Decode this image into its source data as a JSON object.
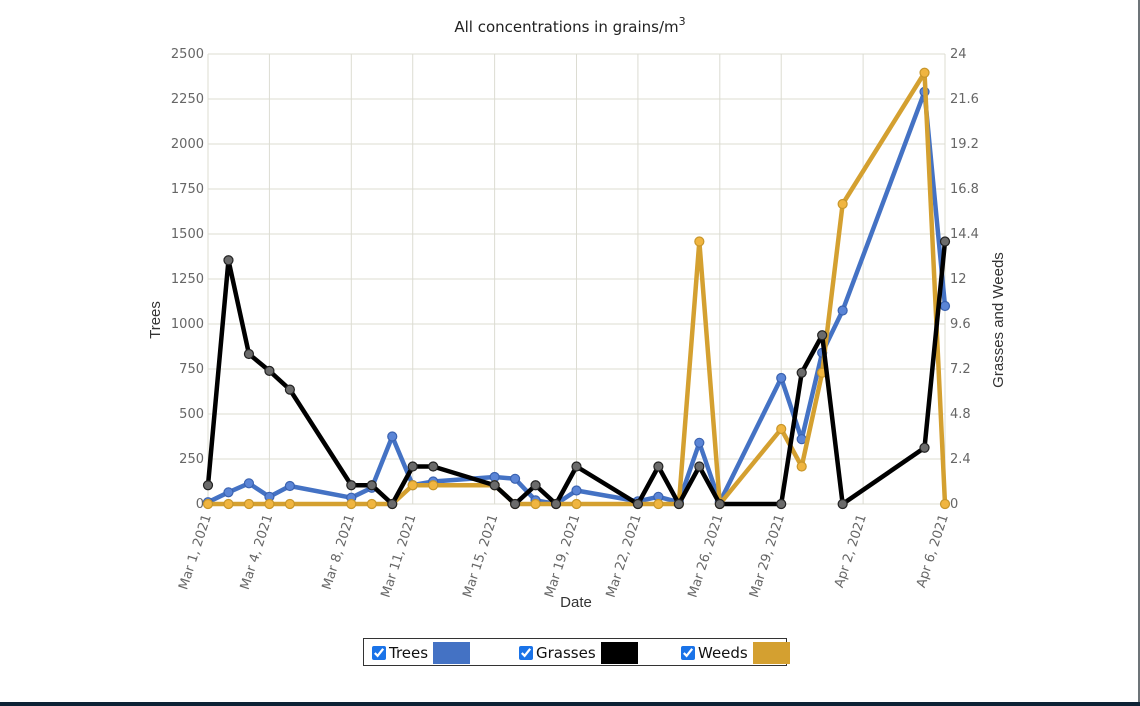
{
  "chart_title": "All concentrations in grains/m",
  "chart_title_sup": "3",
  "x_axis": {
    "title": "Date",
    "ticks": [
      "Mar 1, 2021",
      "Mar 4, 2021",
      "Mar 8, 2021",
      "Mar 11, 2021",
      "Mar 15, 2021",
      "Mar 19, 2021",
      "Mar 22, 2021",
      "Mar 26, 2021",
      "Mar 29, 2021",
      "Apr 2, 2021",
      "Apr 6, 2021"
    ]
  },
  "left_axis": {
    "title": "Trees",
    "ticks": [
      "0",
      "250",
      "500",
      "750",
      "1000",
      "1250",
      "1500",
      "1750",
      "2000",
      "2250",
      "2500"
    ]
  },
  "right_axis": {
    "title": "Grasses and Weeds",
    "ticks": [
      "0",
      "2.4",
      "4.8",
      "7.2",
      "9.6",
      "12",
      "14.4",
      "16.8",
      "19.2",
      "21.6",
      "24"
    ]
  },
  "legend": {
    "items": [
      {
        "label": "Trees",
        "color": "#4472c4",
        "checked": true
      },
      {
        "label": "Grasses",
        "color": "#000000",
        "checked": true
      },
      {
        "label": "Weeds",
        "color": "#d4a030",
        "checked": true
      }
    ]
  },
  "chart_data": {
    "type": "line",
    "title": "All concentrations in grains/m^3",
    "xlabel": "Date",
    "ylabel": "Trees",
    "ylabel_right": "Grasses and Weeds",
    "ylim": [
      0,
      2500
    ],
    "ylim_right": [
      0,
      24
    ],
    "grid": true,
    "legend_position": "bottom",
    "x": [
      "2021-03-01",
      "2021-03-02",
      "2021-03-03",
      "2021-03-04",
      "2021-03-05",
      "2021-03-08",
      "2021-03-09",
      "2021-03-10",
      "2021-03-11",
      "2021-03-12",
      "2021-03-15",
      "2021-03-16",
      "2021-03-17",
      "2021-03-18",
      "2021-03-19",
      "2021-03-22",
      "2021-03-23",
      "2021-03-24",
      "2021-03-25",
      "2021-03-26",
      "2021-03-29",
      "2021-03-30",
      "2021-03-31",
      "2021-04-01",
      "2021-04-05",
      "2021-04-06"
    ],
    "day_index": [
      0,
      1,
      2,
      3,
      4,
      7,
      8,
      9,
      10,
      11,
      14,
      15,
      16,
      17,
      18,
      21,
      22,
      23,
      24,
      25,
      28,
      29,
      30,
      31,
      35,
      36
    ],
    "series": [
      {
        "name": "Trees",
        "axis": "left",
        "color": "#4472c4",
        "values": [
          10,
          65,
          115,
          40,
          100,
          35,
          90,
          375,
          105,
          125,
          150,
          140,
          20,
          0,
          75,
          15,
          40,
          10,
          340,
          10,
          700,
          360,
          840,
          1075,
          2290,
          1100
        ]
      },
      {
        "name": "Grasses",
        "axis": "right",
        "color": "#000000",
        "values": [
          1,
          13,
          8,
          7.1,
          6.1,
          1,
          1,
          0,
          2,
          2,
          1,
          0,
          1,
          0,
          2,
          0,
          2,
          0,
          2,
          0,
          0,
          7,
          9,
          0,
          3,
          14
        ]
      },
      {
        "name": "Weeds",
        "axis": "right",
        "color": "#d4a030",
        "values": [
          0,
          0,
          0,
          0,
          0,
          0,
          0,
          0,
          1,
          1,
          1,
          0,
          0,
          0,
          0,
          0,
          0,
          0,
          14,
          0,
          4,
          2,
          7,
          16,
          23,
          0
        ]
      }
    ]
  }
}
